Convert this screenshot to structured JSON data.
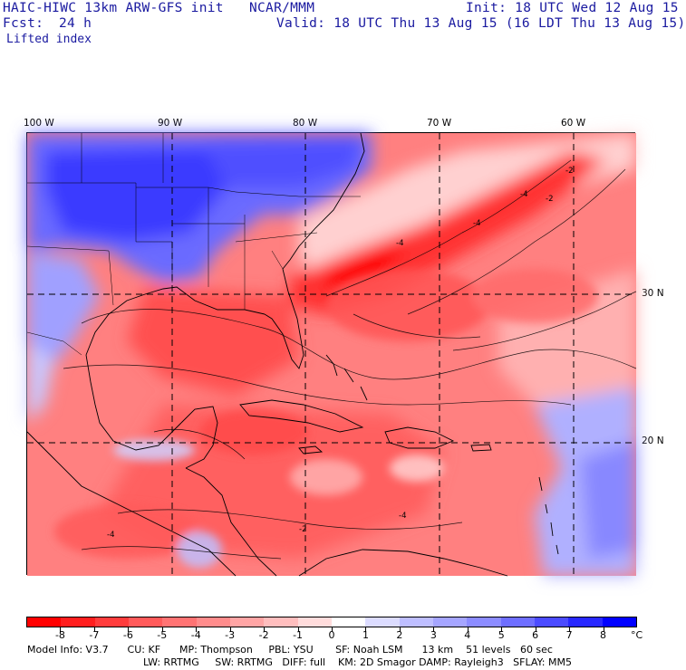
{
  "header": {
    "model_title": "HAIC-HIWC 13km ARW-GFS init",
    "org": "NCAR/MMM",
    "init": "Init: 18 UTC Wed 12 Aug 15",
    "fcst_label": "Fcst:",
    "fcst_value": "24 h",
    "valid": "Valid: 18 UTC Thu 13 Aug 15 (16 LDT Thu 13 Aug 15)",
    "field": "Lifted index"
  },
  "map": {
    "lon_labels": [
      "100 W",
      "90 W",
      "80 W",
      "70 W",
      "60 W"
    ],
    "lat_labels": [
      "30 N",
      "20 N"
    ],
    "contour_labels": [
      "-2",
      "-4",
      "-2",
      "-4",
      "-4",
      "-4",
      "-2",
      "-4"
    ]
  },
  "colorbar": {
    "tick_labels": [
      "-8",
      "-7",
      "-6",
      "-5",
      "-4",
      "-3",
      "-2",
      "-1",
      "0",
      "1",
      "2",
      "3",
      "4",
      "5",
      "6",
      "7",
      "8"
    ],
    "unit": "°C",
    "colors": [
      "#ff0000",
      "#ff1e1e",
      "#ff3c3c",
      "#ff5a5a",
      "#ff7373",
      "#ff8c8c",
      "#ffa5a5",
      "#ffbebe",
      "#ffdcdc",
      "#ffffff",
      "#dcdcff",
      "#bebeff",
      "#a5a5ff",
      "#8c8cff",
      "#6e6eff",
      "#4b4bff",
      "#2828ff",
      "#0000ff"
    ]
  },
  "footer": {
    "line1": "Model Info: V3.7      CU: KF      MP: Thompson     PBL: YSU       SF: Noah LSM      13 km    51 levels   60 sec",
    "line2": "LW: RRTMG     SW: RRTMG   DIFF: full    KM: 2D Smagor DAMP: Rayleigh3   SFLAY: MM5"
  }
}
